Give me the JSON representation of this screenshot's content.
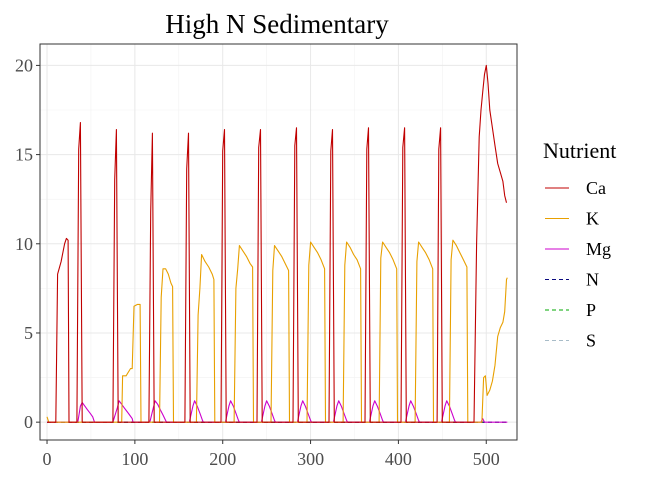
{
  "chart_data": {
    "type": "line",
    "title": "High N Sedimentary",
    "xlabel": "",
    "ylabel": "",
    "xlim": [
      -8,
      535
    ],
    "ylim": [
      -1,
      21.2
    ],
    "x_ticks": [
      0,
      100,
      200,
      300,
      400,
      500
    ],
    "y_ticks": [
      0,
      5,
      10,
      15,
      20
    ],
    "grid": true,
    "legend": {
      "title": "Nutrient",
      "position": "right"
    },
    "series": [
      {
        "name": "Ca",
        "color": "#c00000",
        "dash": "solid",
        "points": [
          [
            0,
            0
          ],
          [
            5,
            0
          ],
          [
            10,
            0
          ],
          [
            12,
            8.3
          ],
          [
            16,
            9.0
          ],
          [
            20,
            10.0
          ],
          [
            22,
            10.3
          ],
          [
            24,
            10.2
          ],
          [
            25,
            0
          ],
          [
            30,
            0
          ],
          [
            34,
            0
          ],
          [
            36,
            15.3
          ],
          [
            38,
            16.8
          ],
          [
            40,
            0
          ],
          [
            45,
            0
          ],
          [
            60,
            0
          ],
          [
            75,
            0
          ],
          [
            77,
            13.6
          ],
          [
            79,
            16.4
          ],
          [
            81,
            0
          ],
          [
            90,
            0
          ],
          [
            116,
            0
          ],
          [
            118,
            11.8
          ],
          [
            120,
            16.2
          ],
          [
            122,
            0
          ],
          [
            130,
            0
          ],
          [
            157,
            0
          ],
          [
            159,
            14.2
          ],
          [
            161,
            16.2
          ],
          [
            163,
            0
          ],
          [
            170,
            0
          ],
          [
            198,
            0
          ],
          [
            200,
            15.2
          ],
          [
            202,
            16.4
          ],
          [
            204,
            0
          ],
          [
            210,
            0
          ],
          [
            239,
            0
          ],
          [
            241,
            15.4
          ],
          [
            243,
            16.4
          ],
          [
            245,
            0
          ],
          [
            250,
            0
          ],
          [
            280,
            0
          ],
          [
            282,
            15.5
          ],
          [
            284,
            16.5
          ],
          [
            286,
            0
          ],
          [
            290,
            0
          ],
          [
            321,
            0
          ],
          [
            323,
            15.2
          ],
          [
            325,
            16.4
          ],
          [
            327,
            0
          ],
          [
            330,
            0
          ],
          [
            362,
            0
          ],
          [
            364,
            15.3
          ],
          [
            366,
            16.5
          ],
          [
            368,
            0
          ],
          [
            370,
            0
          ],
          [
            403,
            0
          ],
          [
            405,
            15.4
          ],
          [
            407,
            16.5
          ],
          [
            409,
            0
          ],
          [
            415,
            0
          ],
          [
            444,
            0
          ],
          [
            446,
            15.3
          ],
          [
            448,
            16.5
          ],
          [
            450,
            0
          ],
          [
            460,
            0
          ],
          [
            486,
            0
          ],
          [
            489,
            10.0
          ],
          [
            492,
            16.0
          ],
          [
            494,
            17.5
          ],
          [
            496,
            18.5
          ],
          [
            498,
            19.5
          ],
          [
            500,
            20.0
          ],
          [
            502,
            19.0
          ],
          [
            504,
            17.5
          ],
          [
            507,
            16.5
          ],
          [
            510,
            15.5
          ],
          [
            513,
            14.5
          ],
          [
            516,
            14.0
          ],
          [
            519,
            13.5
          ],
          [
            521,
            12.7
          ],
          [
            523,
            12.3
          ]
        ]
      },
      {
        "name": "K",
        "color": "#e8a000",
        "dash": "solid",
        "points": [
          [
            0,
            0.3
          ],
          [
            2,
            0
          ],
          [
            10,
            0
          ],
          [
            85,
            0
          ],
          [
            86,
            2.6
          ],
          [
            90,
            2.6
          ],
          [
            95,
            3.0
          ],
          [
            97,
            3.0
          ],
          [
            99,
            6.5
          ],
          [
            103,
            6.6
          ],
          [
            106,
            6.6
          ],
          [
            107,
            0
          ],
          [
            128,
            0
          ],
          [
            130,
            7.0
          ],
          [
            132,
            8.6
          ],
          [
            135,
            8.6
          ],
          [
            138,
            8.3
          ],
          [
            141,
            7.8
          ],
          [
            143,
            7.6
          ],
          [
            144,
            0
          ],
          [
            170,
            0
          ],
          [
            172,
            6.0
          ],
          [
            174,
            7.5
          ],
          [
            176,
            9.4
          ],
          [
            180,
            9.0
          ],
          [
            184,
            8.7
          ],
          [
            188,
            8.3
          ],
          [
            190,
            8.0
          ],
          [
            191,
            0
          ],
          [
            213,
            0
          ],
          [
            215,
            7.5
          ],
          [
            217,
            8.6
          ],
          [
            219,
            9.9
          ],
          [
            223,
            9.6
          ],
          [
            227,
            9.3
          ],
          [
            231,
            8.9
          ],
          [
            234,
            8.7
          ],
          [
            235,
            0
          ],
          [
            255,
            0
          ],
          [
            257,
            8.5
          ],
          [
            259,
            9.9
          ],
          [
            263,
            9.6
          ],
          [
            267,
            9.3
          ],
          [
            271,
            8.9
          ],
          [
            275,
            8.5
          ],
          [
            276,
            0
          ],
          [
            296,
            0
          ],
          [
            298,
            8.8
          ],
          [
            300,
            10.1
          ],
          [
            304,
            9.8
          ],
          [
            308,
            9.5
          ],
          [
            312,
            9.1
          ],
          [
            316,
            8.6
          ],
          [
            317,
            0
          ],
          [
            337,
            0
          ],
          [
            339,
            8.8
          ],
          [
            341,
            10.1
          ],
          [
            345,
            9.8
          ],
          [
            349,
            9.4
          ],
          [
            353,
            9.1
          ],
          [
            357,
            8.6
          ],
          [
            358,
            0
          ],
          [
            378,
            0
          ],
          [
            380,
            9.2
          ],
          [
            382,
            10.1
          ],
          [
            386,
            9.8
          ],
          [
            390,
            9.5
          ],
          [
            394,
            9.1
          ],
          [
            398,
            8.6
          ],
          [
            399,
            0
          ],
          [
            419,
            0
          ],
          [
            421,
            9.0
          ],
          [
            423,
            10.1
          ],
          [
            427,
            9.8
          ],
          [
            431,
            9.5
          ],
          [
            435,
            9.1
          ],
          [
            439,
            8.6
          ],
          [
            440,
            0
          ],
          [
            458,
            0
          ],
          [
            460,
            9.1
          ],
          [
            462,
            10.2
          ],
          [
            466,
            9.9
          ],
          [
            470,
            9.5
          ],
          [
            474,
            9.1
          ],
          [
            478,
            8.7
          ],
          [
            479,
            0
          ],
          [
            495,
            0
          ],
          [
            497,
            2.5
          ],
          [
            499,
            2.6
          ],
          [
            501,
            1.5
          ],
          [
            504,
            1.8
          ],
          [
            507,
            2.3
          ],
          [
            510,
            3.2
          ],
          [
            513,
            4.8
          ],
          [
            516,
            5.3
          ],
          [
            519,
            5.6
          ],
          [
            521,
            6.2
          ],
          [
            523,
            8.0
          ],
          [
            524,
            8.1
          ]
        ]
      },
      {
        "name": "Mg",
        "color": "#cc00cc",
        "dash": "solid",
        "points": [
          [
            0,
            0
          ],
          [
            35,
            0
          ],
          [
            38,
            0.9
          ],
          [
            40,
            1.1
          ],
          [
            43,
            0.9
          ],
          [
            46,
            0.7
          ],
          [
            49,
            0.5
          ],
          [
            52,
            0.3
          ],
          [
            54,
            0
          ],
          [
            75,
            0
          ],
          [
            80,
            0.8
          ],
          [
            82,
            1.2
          ],
          [
            85,
            1.0
          ],
          [
            88,
            0.8
          ],
          [
            91,
            0.6
          ],
          [
            94,
            0.4
          ],
          [
            97,
            0.2
          ],
          [
            98,
            0
          ],
          [
            117,
            0
          ],
          [
            121,
            0.8
          ],
          [
            123,
            1.2
          ],
          [
            126,
            1.0
          ],
          [
            129,
            0.7
          ],
          [
            132,
            0.4
          ],
          [
            135,
            0.1
          ],
          [
            136,
            0
          ],
          [
            162,
            0
          ],
          [
            166,
            0.9
          ],
          [
            168,
            1.2
          ],
          [
            171,
            0.9
          ],
          [
            174,
            0.5
          ],
          [
            177,
            0.1
          ],
          [
            178,
            0
          ],
          [
            203,
            0
          ],
          [
            207,
            0.9
          ],
          [
            209,
            1.2
          ],
          [
            212,
            0.9
          ],
          [
            215,
            0.5
          ],
          [
            218,
            0.1
          ],
          [
            219,
            0
          ],
          [
            244,
            0
          ],
          [
            248,
            0.9
          ],
          [
            250,
            1.2
          ],
          [
            253,
            0.9
          ],
          [
            256,
            0.5
          ],
          [
            259,
            0.1
          ],
          [
            260,
            0
          ],
          [
            285,
            0
          ],
          [
            289,
            0.9
          ],
          [
            291,
            1.2
          ],
          [
            294,
            0.9
          ],
          [
            297,
            0.5
          ],
          [
            300,
            0.1
          ],
          [
            301,
            0
          ],
          [
            326,
            0
          ],
          [
            330,
            0.9
          ],
          [
            332,
            1.2
          ],
          [
            335,
            0.9
          ],
          [
            338,
            0.5
          ],
          [
            341,
            0.1
          ],
          [
            342,
            0
          ],
          [
            367,
            0
          ],
          [
            371,
            0.9
          ],
          [
            373,
            1.2
          ],
          [
            376,
            0.9
          ],
          [
            379,
            0.5
          ],
          [
            382,
            0.1
          ],
          [
            383,
            0
          ],
          [
            408,
            0
          ],
          [
            412,
            0.9
          ],
          [
            414,
            1.2
          ],
          [
            417,
            0.9
          ],
          [
            420,
            0.5
          ],
          [
            423,
            0.1
          ],
          [
            424,
            0
          ],
          [
            449,
            0
          ],
          [
            453,
            0.9
          ],
          [
            455,
            1.2
          ],
          [
            458,
            0.9
          ],
          [
            461,
            0.5
          ],
          [
            464,
            0.1
          ],
          [
            465,
            0
          ],
          [
            494,
            0
          ],
          [
            496,
            0.2
          ],
          [
            498,
            0
          ],
          [
            524,
            0
          ]
        ]
      },
      {
        "name": "N",
        "color": "#0a0a80",
        "dash": "dashed",
        "points": [
          [
            0,
            0
          ],
          [
            524,
            0
          ]
        ]
      },
      {
        "name": "P",
        "color": "#00aa00",
        "dash": "dashed",
        "points": [
          [
            0,
            0
          ],
          [
            524,
            0
          ]
        ]
      },
      {
        "name": "S",
        "color": "#a8bcc8",
        "dash": "dashed",
        "points": [
          [
            0,
            0
          ],
          [
            524,
            0
          ]
        ]
      }
    ]
  }
}
